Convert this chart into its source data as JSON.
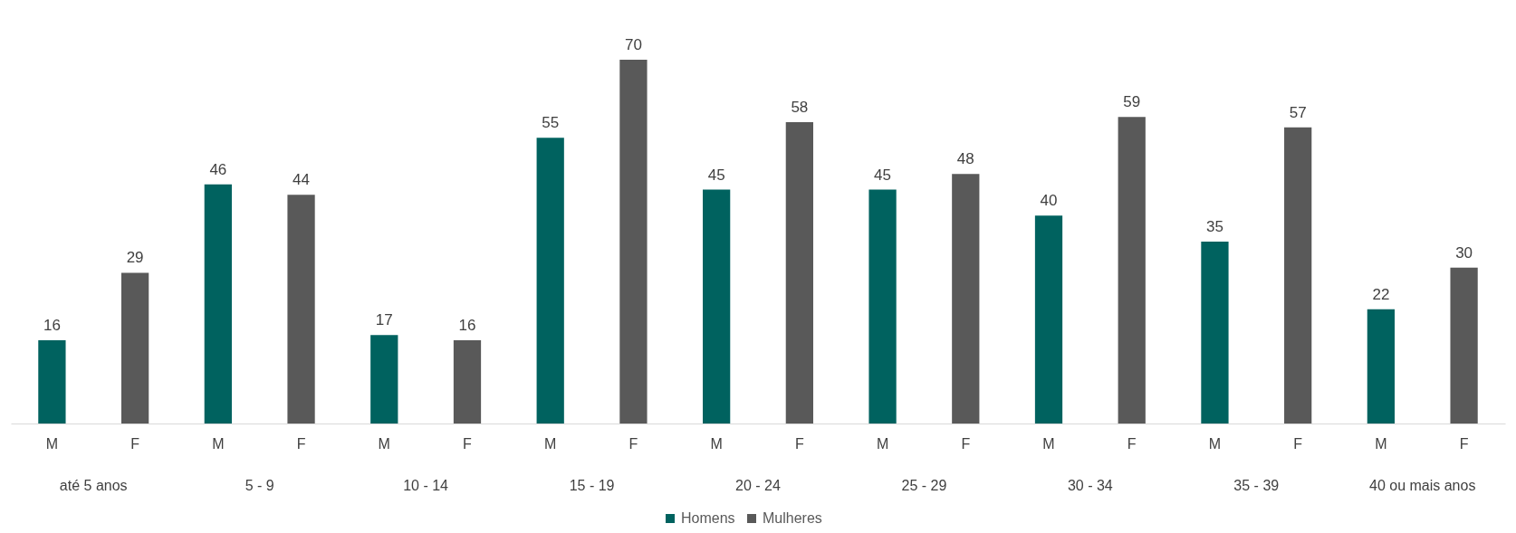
{
  "chart_data": {
    "type": "bar",
    "categories": [
      "M",
      "F",
      "M",
      "F",
      "M",
      "F",
      "M",
      "F",
      "M",
      "F",
      "M",
      "F",
      "M",
      "F",
      "M",
      "F",
      "M",
      "F"
    ],
    "series": [
      {
        "name": "Homens",
        "color": "#00625f",
        "values": [
          16,
          null,
          46,
          null,
          17,
          null,
          55,
          null,
          45,
          null,
          45,
          null,
          40,
          null,
          35,
          null,
          22,
          null
        ]
      },
      {
        "name": "Mulheres",
        "color": "#595959",
        "values": [
          null,
          29,
          null,
          44,
          null,
          16,
          null,
          70,
          null,
          58,
          null,
          48,
          null,
          59,
          null,
          57,
          null,
          30
        ]
      }
    ],
    "annotations": [
      "até 5 anos",
      "5 - 9",
      "10 - 14",
      "15 - 19",
      "20 - 24",
      "25 - 29",
      "30 - 34",
      "35 - 39",
      "40 ou mais anos"
    ],
    "data_labels": true,
    "legend": "bottom",
    "grid": false
  }
}
